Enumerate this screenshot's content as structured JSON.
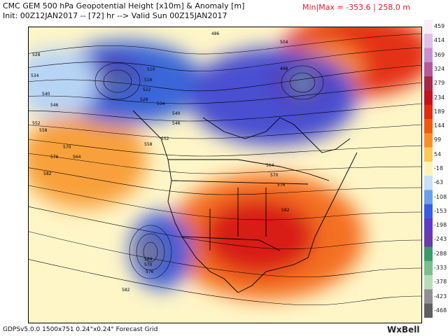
{
  "header": {
    "line1": "CMC GEM 500 hPa Geopotential Height [x10m] & Anomaly [m]",
    "line2": "Init: 00Z12JAN2017 -- [72] hr --> Valid Sun 00Z15JAN2017",
    "minmax": "Min|Max = -353.6 | 258.0 m"
  },
  "footer": {
    "left": "GDPSv5.0.0  1500x751  0.24°x0.24° Forecast Grid",
    "right": "WxBell"
  },
  "colorbar": {
    "labels": [
      "459",
      "414",
      "369",
      "324",
      "279",
      "234",
      "189",
      "144",
      "99",
      "54",
      "-18",
      "-63",
      "-108",
      "-153",
      "-198",
      "-243",
      "-288",
      "-333",
      "-378",
      "-423",
      "-468"
    ],
    "colors": [
      "#f4f0f6",
      "#e0c0e8",
      "#c890d0",
      "#b45a9c",
      "#a8264a",
      "#c4121c",
      "#e02c10",
      "#f05a10",
      "#f89028",
      "#fcc858",
      "#fff4b8",
      "#c8e0f8",
      "#6aa0f0",
      "#3a5ce0",
      "#5a3cc8",
      "#6a3aa8",
      "#3a9a6a",
      "#7ac08a",
      "#b8dcb8",
      "#909090",
      "#606060"
    ]
  },
  "contour_labels": [
    "486",
    "504",
    "498",
    "510",
    "516",
    "522",
    "528",
    "534",
    "540",
    "546",
    "552",
    "558",
    "564",
    "570",
    "576",
    "582",
    "528",
    "534",
    "540",
    "546",
    "552",
    "558",
    "564",
    "570",
    "576",
    "582",
    "564",
    "570",
    "576",
    "582"
  ],
  "colors": {
    "land_outline": "#000000",
    "title_minmax": "#e8172a"
  }
}
